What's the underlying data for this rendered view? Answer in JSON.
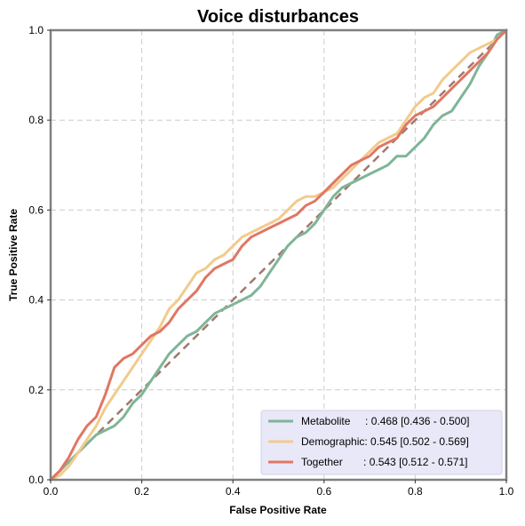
{
  "chart_data": {
    "type": "line",
    "title": "Voice disturbances",
    "xlabel": "False Positive Rate",
    "ylabel": "True Positive Rate",
    "xlim": [
      0,
      1
    ],
    "ylim": [
      0,
      1
    ],
    "xticks": [
      "0.0",
      "0.2",
      "0.4",
      "0.6",
      "0.8",
      "1.0"
    ],
    "yticks": [
      "0.0",
      "0.2",
      "0.4",
      "0.6",
      "0.8",
      "1.0"
    ],
    "grid": true,
    "legend_position": "lower-right",
    "legend_bg": "#e8e8f8",
    "diagonal": {
      "x": [
        0,
        1
      ],
      "y": [
        0,
        1
      ],
      "color": "#a0786e",
      "style": "dashed"
    },
    "series": [
      {
        "name": "Metabolite",
        "label": "Metabolite     : 0.468 [0.436 - 0.500]",
        "color": "#7fb597",
        "x": [
          0,
          0.02,
          0.04,
          0.06,
          0.08,
          0.1,
          0.12,
          0.14,
          0.16,
          0.18,
          0.2,
          0.22,
          0.24,
          0.26,
          0.28,
          0.3,
          0.32,
          0.34,
          0.36,
          0.38,
          0.4,
          0.42,
          0.44,
          0.46,
          0.48,
          0.5,
          0.52,
          0.54,
          0.56,
          0.58,
          0.6,
          0.62,
          0.64,
          0.66,
          0.68,
          0.7,
          0.72,
          0.74,
          0.76,
          0.78,
          0.8,
          0.82,
          0.84,
          0.86,
          0.88,
          0.9,
          0.92,
          0.94,
          0.96,
          0.98,
          1.0
        ],
        "y": [
          0,
          0.02,
          0.04,
          0.06,
          0.08,
          0.1,
          0.11,
          0.12,
          0.14,
          0.17,
          0.19,
          0.22,
          0.25,
          0.28,
          0.3,
          0.32,
          0.33,
          0.35,
          0.37,
          0.38,
          0.39,
          0.4,
          0.41,
          0.43,
          0.46,
          0.49,
          0.52,
          0.54,
          0.55,
          0.57,
          0.6,
          0.63,
          0.65,
          0.66,
          0.67,
          0.68,
          0.69,
          0.7,
          0.72,
          0.72,
          0.74,
          0.76,
          0.79,
          0.81,
          0.82,
          0.85,
          0.88,
          0.92,
          0.95,
          0.99,
          1.0
        ]
      },
      {
        "name": "Demographic",
        "label": "Demographic: 0.545 [0.502 - 0.569]",
        "color": "#f2cb8b",
        "x": [
          0,
          0.02,
          0.04,
          0.06,
          0.08,
          0.1,
          0.12,
          0.14,
          0.16,
          0.18,
          0.2,
          0.22,
          0.24,
          0.26,
          0.28,
          0.3,
          0.32,
          0.34,
          0.36,
          0.38,
          0.4,
          0.42,
          0.44,
          0.46,
          0.48,
          0.5,
          0.52,
          0.54,
          0.56,
          0.58,
          0.6,
          0.62,
          0.64,
          0.66,
          0.68,
          0.7,
          0.72,
          0.74,
          0.76,
          0.78,
          0.8,
          0.82,
          0.84,
          0.86,
          0.88,
          0.9,
          0.92,
          0.94,
          0.96,
          0.98,
          1.0
        ],
        "y": [
          0,
          0.01,
          0.03,
          0.06,
          0.09,
          0.12,
          0.16,
          0.19,
          0.22,
          0.25,
          0.28,
          0.31,
          0.34,
          0.38,
          0.4,
          0.43,
          0.46,
          0.47,
          0.49,
          0.5,
          0.52,
          0.54,
          0.55,
          0.56,
          0.57,
          0.58,
          0.6,
          0.62,
          0.63,
          0.63,
          0.64,
          0.65,
          0.67,
          0.69,
          0.71,
          0.73,
          0.75,
          0.76,
          0.77,
          0.8,
          0.83,
          0.85,
          0.86,
          0.89,
          0.91,
          0.93,
          0.95,
          0.96,
          0.97,
          0.98,
          1.0
        ]
      },
      {
        "name": "Together",
        "label": "Together       : 0.543 [0.512 - 0.571]",
        "color": "#e07763",
        "x": [
          0,
          0.02,
          0.04,
          0.06,
          0.08,
          0.1,
          0.12,
          0.14,
          0.16,
          0.18,
          0.2,
          0.22,
          0.24,
          0.26,
          0.28,
          0.3,
          0.32,
          0.34,
          0.36,
          0.38,
          0.4,
          0.42,
          0.44,
          0.46,
          0.48,
          0.5,
          0.52,
          0.54,
          0.56,
          0.58,
          0.6,
          0.62,
          0.64,
          0.66,
          0.68,
          0.7,
          0.72,
          0.74,
          0.76,
          0.78,
          0.8,
          0.82,
          0.84,
          0.86,
          0.88,
          0.9,
          0.92,
          0.94,
          0.96,
          0.98,
          1.0
        ],
        "y": [
          0,
          0.02,
          0.05,
          0.09,
          0.12,
          0.14,
          0.19,
          0.25,
          0.27,
          0.28,
          0.3,
          0.32,
          0.33,
          0.35,
          0.38,
          0.4,
          0.42,
          0.45,
          0.47,
          0.48,
          0.49,
          0.52,
          0.54,
          0.55,
          0.56,
          0.57,
          0.58,
          0.59,
          0.61,
          0.62,
          0.64,
          0.66,
          0.68,
          0.7,
          0.71,
          0.72,
          0.74,
          0.75,
          0.76,
          0.79,
          0.81,
          0.82,
          0.83,
          0.85,
          0.87,
          0.89,
          0.91,
          0.93,
          0.95,
          0.98,
          1.0
        ]
      }
    ]
  }
}
